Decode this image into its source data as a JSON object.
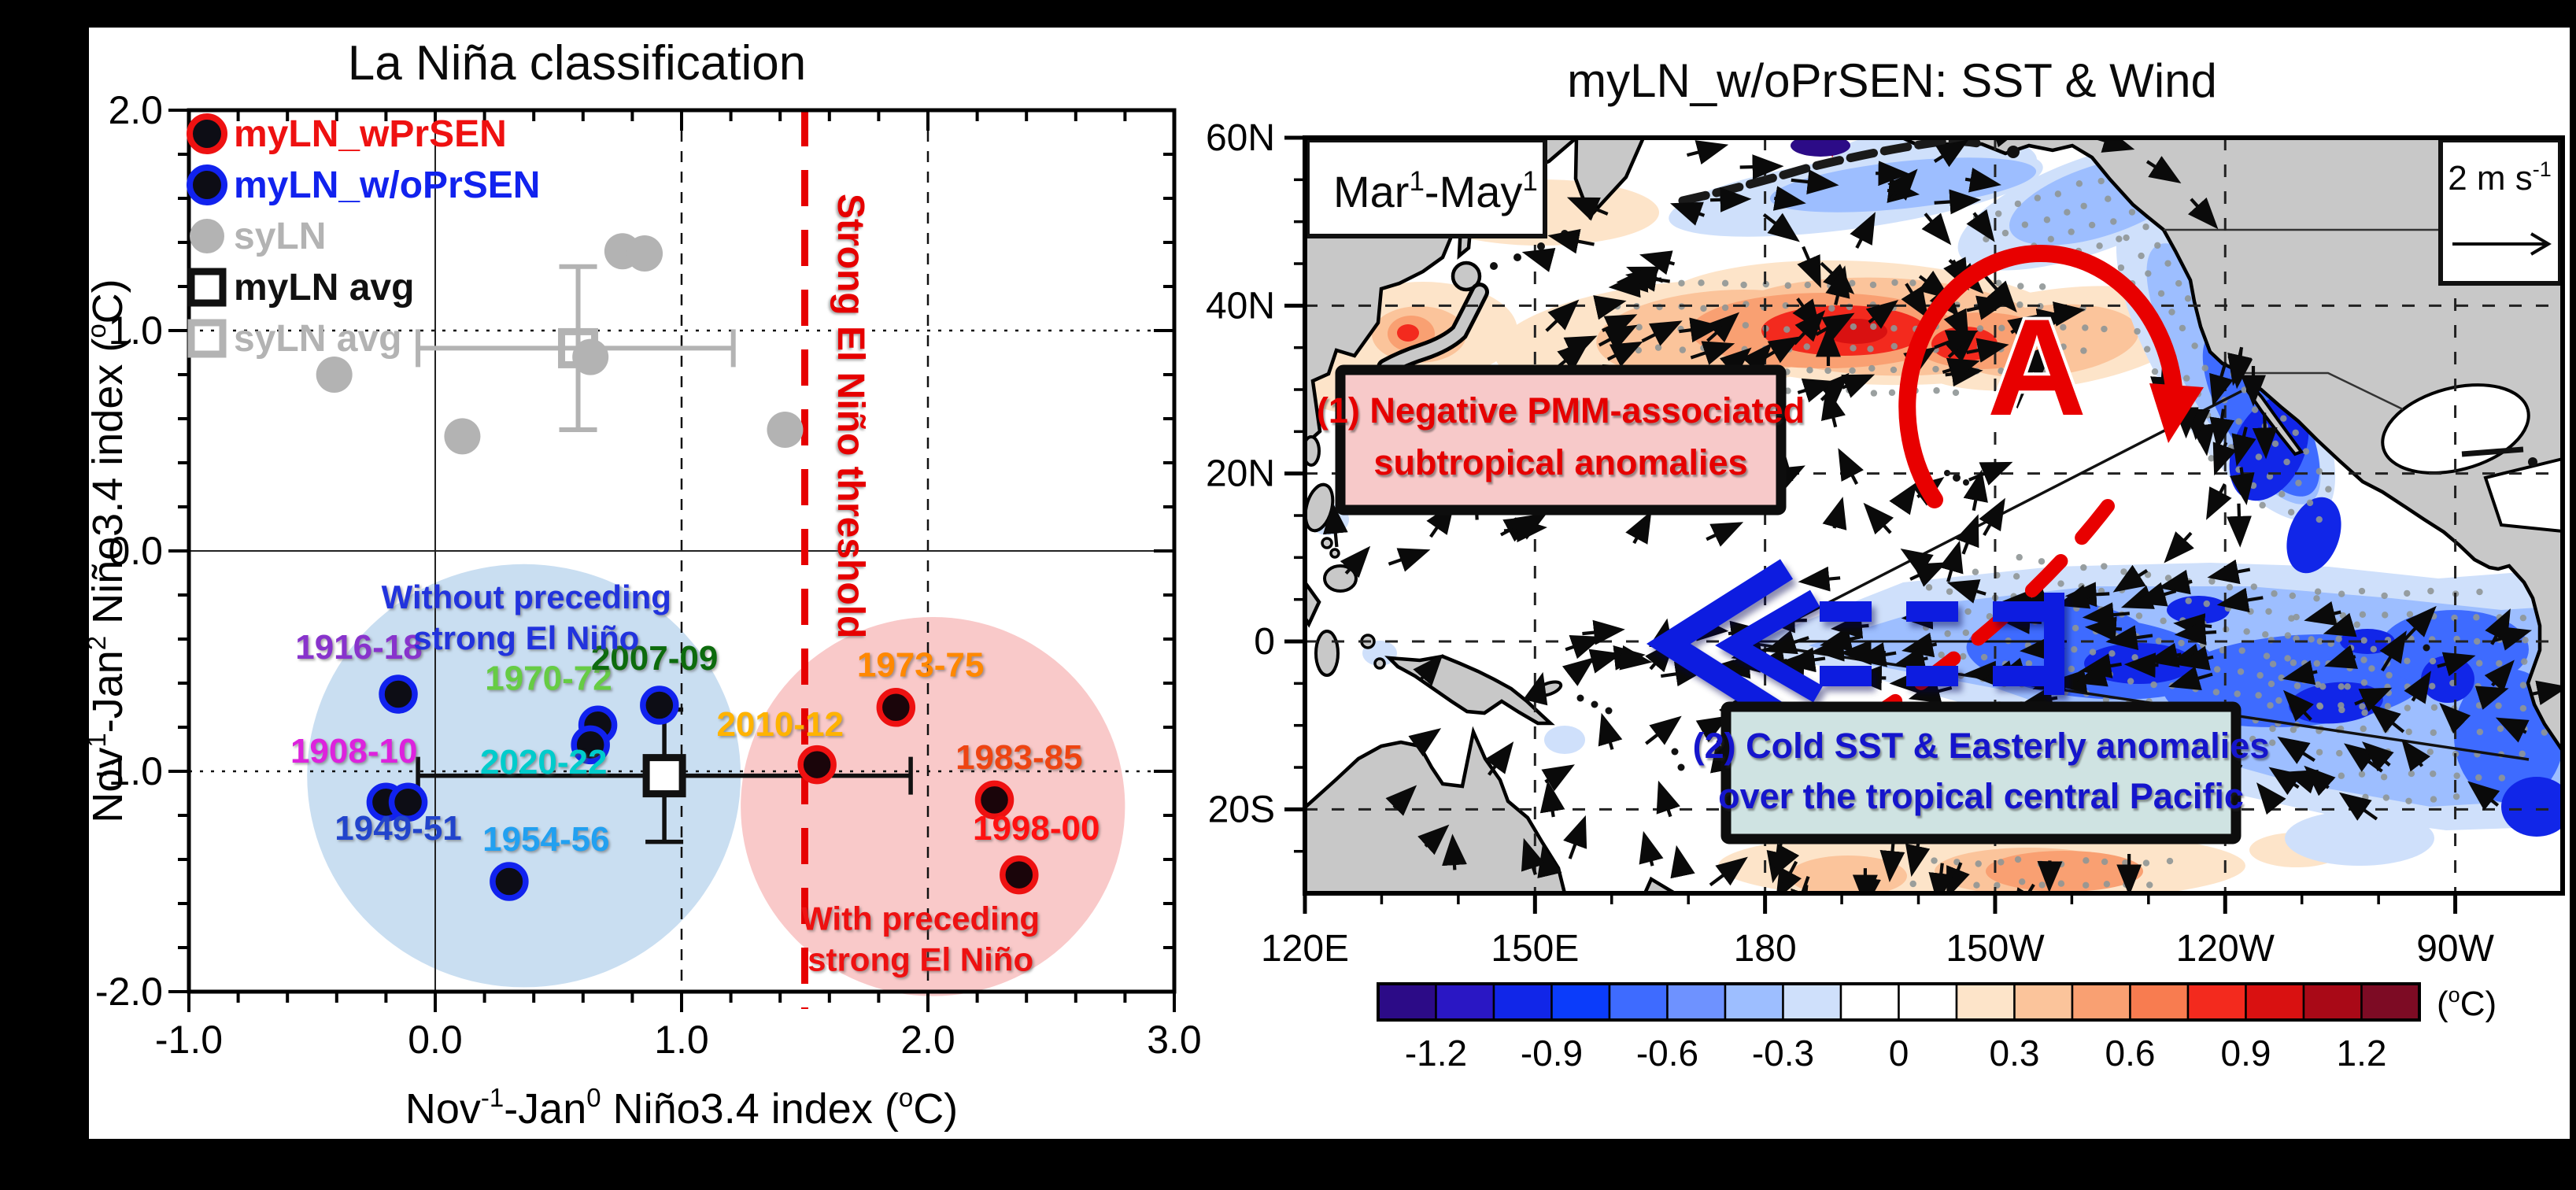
{
  "figure": {
    "background": "#000000",
    "panel_background": "#ffffff"
  },
  "chart_data": [
    {
      "type": "scatter",
      "title": "La Niña classification",
      "xlabel_parts": [
        {
          "t": "Nov"
        },
        {
          "t": "-1",
          "sup": true
        },
        {
          "t": "-Jan"
        },
        {
          "t": "0",
          "sup": true
        },
        {
          "t": " Niño3.4 index ("
        },
        {
          "t": "o",
          "sup": true
        },
        {
          "t": "C)"
        }
      ],
      "ylabel_parts": [
        {
          "t": "Nov"
        },
        {
          "t": "1",
          "sup": true
        },
        {
          "t": "-Jan"
        },
        {
          "t": "2",
          "sup": true
        },
        {
          "t": " Niño3.4 index ("
        },
        {
          "t": "o",
          "sup": true
        },
        {
          "t": "C)"
        }
      ],
      "xlim": [
        -1,
        3
      ],
      "ylim": [
        -2,
        2
      ],
      "xticks": [
        {
          "v": -1,
          "label": "-1.0"
        },
        {
          "v": 0,
          "label": "0.0"
        },
        {
          "v": 1,
          "label": "1.0"
        },
        {
          "v": 2,
          "label": "2.0"
        },
        {
          "v": 3,
          "label": "3.0"
        }
      ],
      "yticks": [
        {
          "v": -2,
          "label": "-2.0"
        },
        {
          "v": -1,
          "label": "-1.0"
        },
        {
          "v": 0,
          "label": "0.0"
        },
        {
          "v": 1,
          "label": "1.0"
        },
        {
          "v": 2,
          "label": "2.0"
        }
      ],
      "minor_step": 0.2,
      "grid": {
        "dotted_y": [
          1,
          -1
        ],
        "dashed_x": [
          1,
          2
        ],
        "solid_x": 0,
        "solid_y": 0
      },
      "threshold": {
        "x": 1.5,
        "label": "Strong El Niño threshold",
        "color": "#e60000"
      },
      "regions": [
        {
          "name": "without-preceding",
          "cx": 0.36,
          "cy": -1.02,
          "rx": 0.88,
          "ry": 0.96,
          "color": "#c9def1",
          "label_lines": [
            "Without preceding",
            "strong El Niño"
          ],
          "label_color": "#2233dd",
          "label_x": 0.37,
          "label_y": -0.26
        },
        {
          "name": "with-preceding",
          "cx": 2.02,
          "cy": -1.16,
          "rx": 0.78,
          "ry": 0.86,
          "color": "#f9c9c9",
          "label_lines": [
            "With preceding",
            "strong El Niño"
          ],
          "label_color": "#ee1111",
          "label_x": 1.97,
          "label_y": -1.72
        }
      ],
      "legend": [
        {
          "label": "myLN_wPrSEN",
          "text_color": "#ee1111",
          "marker": "dot",
          "fill": "#0d0d15",
          "ring": "#ee1111"
        },
        {
          "label": "myLN_w/oPrSEN",
          "text_color": "#1122ee",
          "marker": "dot",
          "fill": "#0d0d15",
          "ring": "#1122ee"
        },
        {
          "label": "syLN",
          "text_color": "#b3b3b3",
          "marker": "dot",
          "fill": "#b3b3b3",
          "ring": "#b3b3b3"
        },
        {
          "label": "myLN avg",
          "text_color": "#111111",
          "marker": "square",
          "stroke": "#111111"
        },
        {
          "label": "syLN avg",
          "text_color": "#b3b3b3",
          "marker": "square",
          "stroke": "#b3b3b3"
        }
      ],
      "series": [
        {
          "name": "myLN_w/oPrSEN",
          "marker_fill": "#0d0d15",
          "marker_ring": "#1122ee",
          "points": [
            {
              "x": -0.15,
              "y": -0.65,
              "label": "1916-18",
              "label_color": "#8833cc",
              "lx": -0.31,
              "ly": -0.49
            },
            {
              "x": -0.2,
              "y": -1.14,
              "label": "1908-10",
              "label_color": "#dd22dd",
              "lx": -0.33,
              "ly": -0.96
            },
            {
              "x": -0.11,
              "y": -1.14,
              "label": "1949-51",
              "label_color": "#2244cc",
              "lx": -0.15,
              "ly": -1.31
            },
            {
              "x": 0.3,
              "y": -1.5,
              "label": "1954-56",
              "label_color": "#22a0f0",
              "lx": 0.45,
              "ly": -1.36
            },
            {
              "x": 0.66,
              "y": -0.79,
              "label": "1970-72",
              "label_color": "#66cc44",
              "lx": 0.46,
              "ly": -0.63
            },
            {
              "x": 0.63,
              "y": -0.88,
              "label": "2020-22",
              "label_color": "#00cccc",
              "lx": 0.44,
              "ly": -1.01
            },
            {
              "x": 0.91,
              "y": -0.7,
              "label": "2007-09",
              "label_color": "#0d6b0d",
              "lx": 0.89,
              "ly": -0.54
            }
          ]
        },
        {
          "name": "myLN_wPrSEN",
          "marker_fill": "#1a050a",
          "marker_ring": "#ee1111",
          "points": [
            {
              "x": 1.55,
              "y": -0.97,
              "label": "2010-12",
              "label_color": "#ffb300",
              "lx": 1.4,
              "ly": -0.84
            },
            {
              "x": 1.87,
              "y": -0.71,
              "label": "1973-75",
              "label_color": "#ff8800",
              "lx": 1.97,
              "ly": -0.57
            },
            {
              "x": 2.27,
              "y": -1.13,
              "label": "1983-85",
              "label_color": "#ee4411",
              "lx": 2.37,
              "ly": -0.99
            },
            {
              "x": 2.37,
              "y": -1.47,
              "label": "1998-00",
              "label_color": "#ff1111",
              "lx": 2.44,
              "ly": -1.31
            }
          ]
        },
        {
          "name": "syLN",
          "marker_fill": "#b3b3b3",
          "marker_ring": "#b3b3b3",
          "points": [
            {
              "x": -0.41,
              "y": 0.8
            },
            {
              "x": 0.11,
              "y": 0.52
            },
            {
              "x": 0.76,
              "y": 1.36
            },
            {
              "x": 0.85,
              "y": 1.35
            },
            {
              "x": 0.63,
              "y": 0.88
            },
            {
              "x": 1.42,
              "y": 0.55
            }
          ]
        }
      ],
      "averages": [
        {
          "name": "myLN avg",
          "x": 0.93,
          "y": -1.02,
          "xerr": [
            -0.07,
            1.93
          ],
          "yerr": [
            -1.32,
            -0.72
          ],
          "color": "#111111",
          "size": 46
        },
        {
          "name": "syLN avg",
          "x": 0.58,
          "y": 0.92,
          "xerr": [
            -0.07,
            1.21
          ],
          "yerr": [
            0.55,
            1.29
          ],
          "color": "#b3b3b3",
          "size": 42
        }
      ]
    },
    {
      "type": "map",
      "title": "myLN_w/oPrSEN: SST & Wind",
      "period_parts": [
        {
          "t": "Mar"
        },
        {
          "t": "1",
          "sup": true
        },
        {
          "t": "-May"
        },
        {
          "t": "1",
          "sup": true
        }
      ],
      "wind_scale_parts": [
        {
          "t": "2 m s"
        },
        {
          "t": "-1",
          "sup": true
        }
      ],
      "lat_ticks": [
        {
          "label": "60N",
          "lat": 60
        },
        {
          "label": "40N",
          "lat": 40
        },
        {
          "label": "20N",
          "lat": 20
        },
        {
          "label": "0",
          "lat": 0
        },
        {
          "label": "20S",
          "lat": -20
        }
      ],
      "lon_ticks": [
        {
          "label": "120E",
          "lon": 120
        },
        {
          "label": "150E",
          "lon": 150
        },
        {
          "label": "180",
          "lon": 180
        },
        {
          "label": "150W",
          "lon": 210
        },
        {
          "label": "120W",
          "lon": 240
        },
        {
          "label": "90W",
          "lon": 270
        }
      ],
      "annotations": [
        {
          "id": 1,
          "lines": [
            "(1) Negative PMM-associated",
            "subtropical anomalies"
          ],
          "text_color": "#e60000",
          "bg": "#f7c9c9"
        },
        {
          "id": 2,
          "lines": [
            "(2) Cold SST & Easterly anomalies",
            "over the tropical central Pacific"
          ],
          "text_color": "#1515cc",
          "bg": "#cfe3e2"
        }
      ],
      "anticyclone_label": "A",
      "colorbar": {
        "unit_parts": [
          {
            "t": "("
          },
          {
            "t": "o",
            "sup": true
          },
          {
            "t": "C)"
          }
        ],
        "labels": [
          "-1.2",
          "-0.9",
          "-0.6",
          "-0.3",
          "0",
          "0.3",
          "0.6",
          "0.9",
          "1.2"
        ],
        "colors": [
          "#2c0b87",
          "#2a17c4",
          "#1126e8",
          "#0b3cfa",
          "#3e6bff",
          "#6e92ff",
          "#9dbeff",
          "#cfe0fb",
          "#ffffff",
          "#ffffff",
          "#fde4c9",
          "#fbc49b",
          "#f9a072",
          "#f87c50",
          "#f32a1e",
          "#d91111",
          "#a90917",
          "#7d0b24"
        ]
      }
    }
  ]
}
